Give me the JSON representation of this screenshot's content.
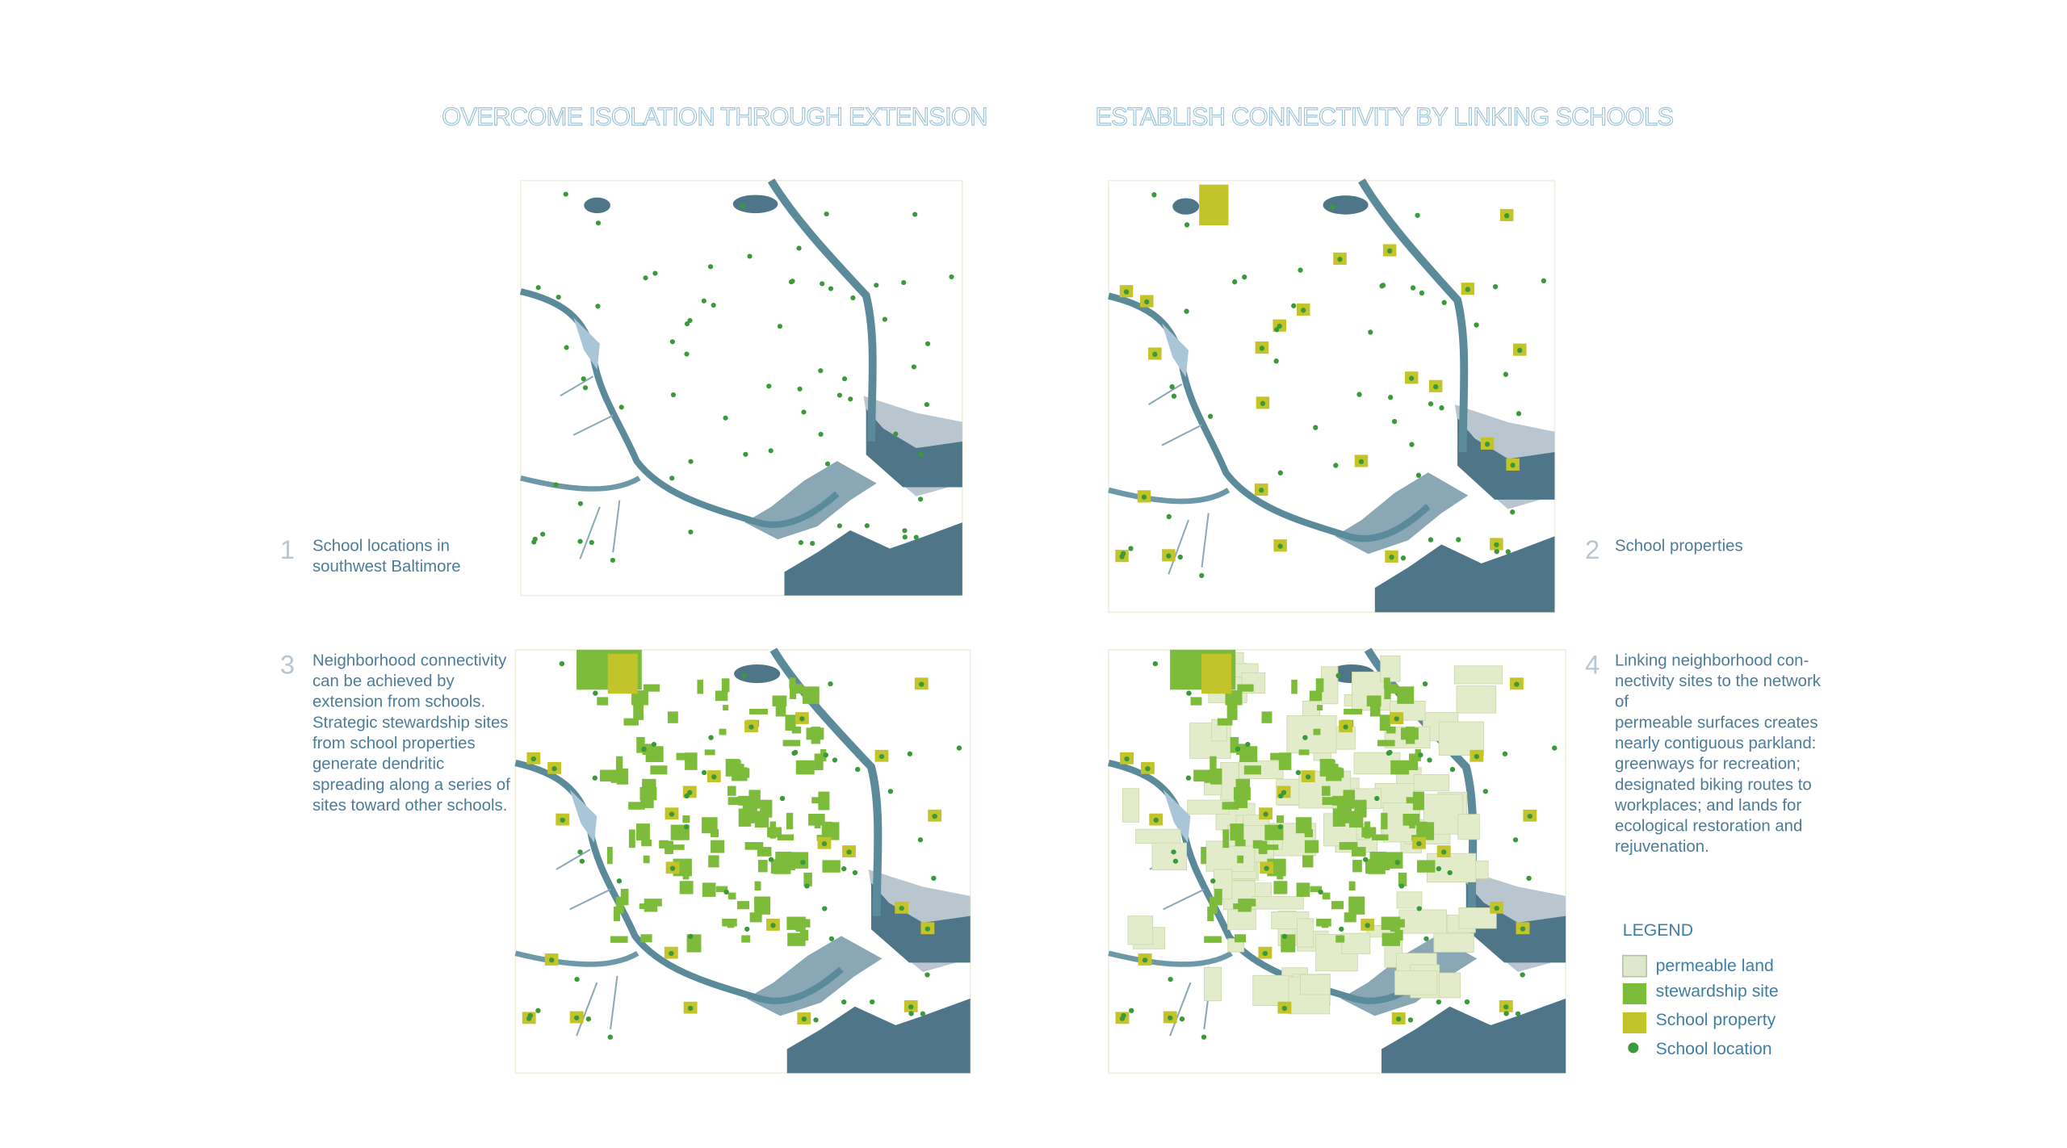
{
  "titles": [
    "OVERCOME ISOLATION THROUGH EXTENSION",
    "ESTABLISH  CONNECTIVITY BY LINKING SCHOOLS"
  ],
  "panels": [
    {
      "number": "1",
      "caption": [
        "School locations in",
        "southwest Baltimore"
      ]
    },
    {
      "number": "2",
      "caption": [
        "School properties"
      ]
    },
    {
      "number": "3",
      "caption": [
        "Neighborhood connectivity",
        "can be achieved by",
        "extension from schools.",
        "Strategic stewardship sites",
        "from school properties",
        "generate dendritic",
        "spreading along a series of",
        "sites toward other schools."
      ]
    },
    {
      "number": "4",
      "caption": [
        "Linking neighborhood con-",
        "nectivity sites to the network",
        "of",
        "permeable surfaces creates",
        "nearly contiguous parkland:",
        "greenways for recreation;",
        "designated biking routes to",
        "workplaces; and lands for",
        "ecological restoration and",
        "rejuvenation."
      ]
    }
  ],
  "legend": {
    "title": "LEGEND",
    "items": [
      "permeable land",
      "stewardship site",
      "School property",
      "School location"
    ]
  }
}
